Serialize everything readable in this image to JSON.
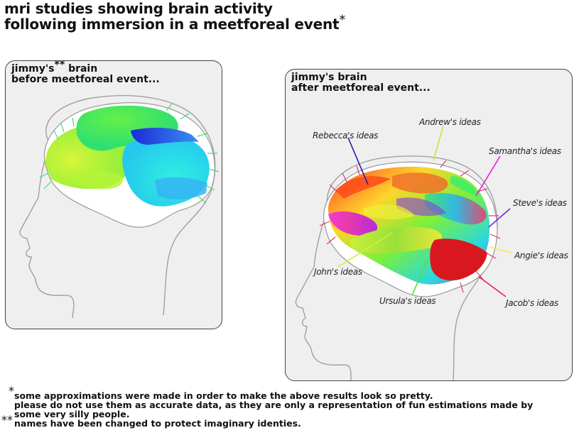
{
  "title": {
    "line1": "mri studies showing brain activity",
    "line2": "following immersion in a meetforeal event",
    "mark": "*"
  },
  "panel_before": {
    "name_line": "jimmy's",
    "name_mark": "**",
    "name_rest": "brain",
    "line2": "before meetforeal event..."
  },
  "panel_after": {
    "line1": "jimmy's brain",
    "line2": "after meetforeal event..."
  },
  "ideas": [
    {
      "label": "Rebecca's ideas",
      "color": "#2a1aa8"
    },
    {
      "label": "Andrew's ideas",
      "color": "#cfe23a"
    },
    {
      "label": "Samantha's ideas",
      "color": "#e51ed8"
    },
    {
      "label": "Steve's ideas",
      "color": "#6a2ad8"
    },
    {
      "label": "Angie's ideas",
      "color": "#f2e84a"
    },
    {
      "label": "John's ideas",
      "color": "#d6ec3a"
    },
    {
      "label": "Ursula's ideas",
      "color": "#59e03a"
    },
    {
      "label": "Jacob's ideas",
      "color": "#e0205a"
    }
  ],
  "footnotes": {
    "mark1": "*",
    "line1": "some approximations were made in order to make the above results look so pretty.",
    "line2": "please do not use them as accurate data, as they are only a representation of fun estimations made by",
    "line3": "some very silly people.",
    "mark2": "**",
    "line4": "names have been changed to protect imaginary identies."
  },
  "colors": {
    "panel_bg": "#efefef",
    "panel_border": "#444444",
    "head_outline": "#9a9a9a"
  }
}
